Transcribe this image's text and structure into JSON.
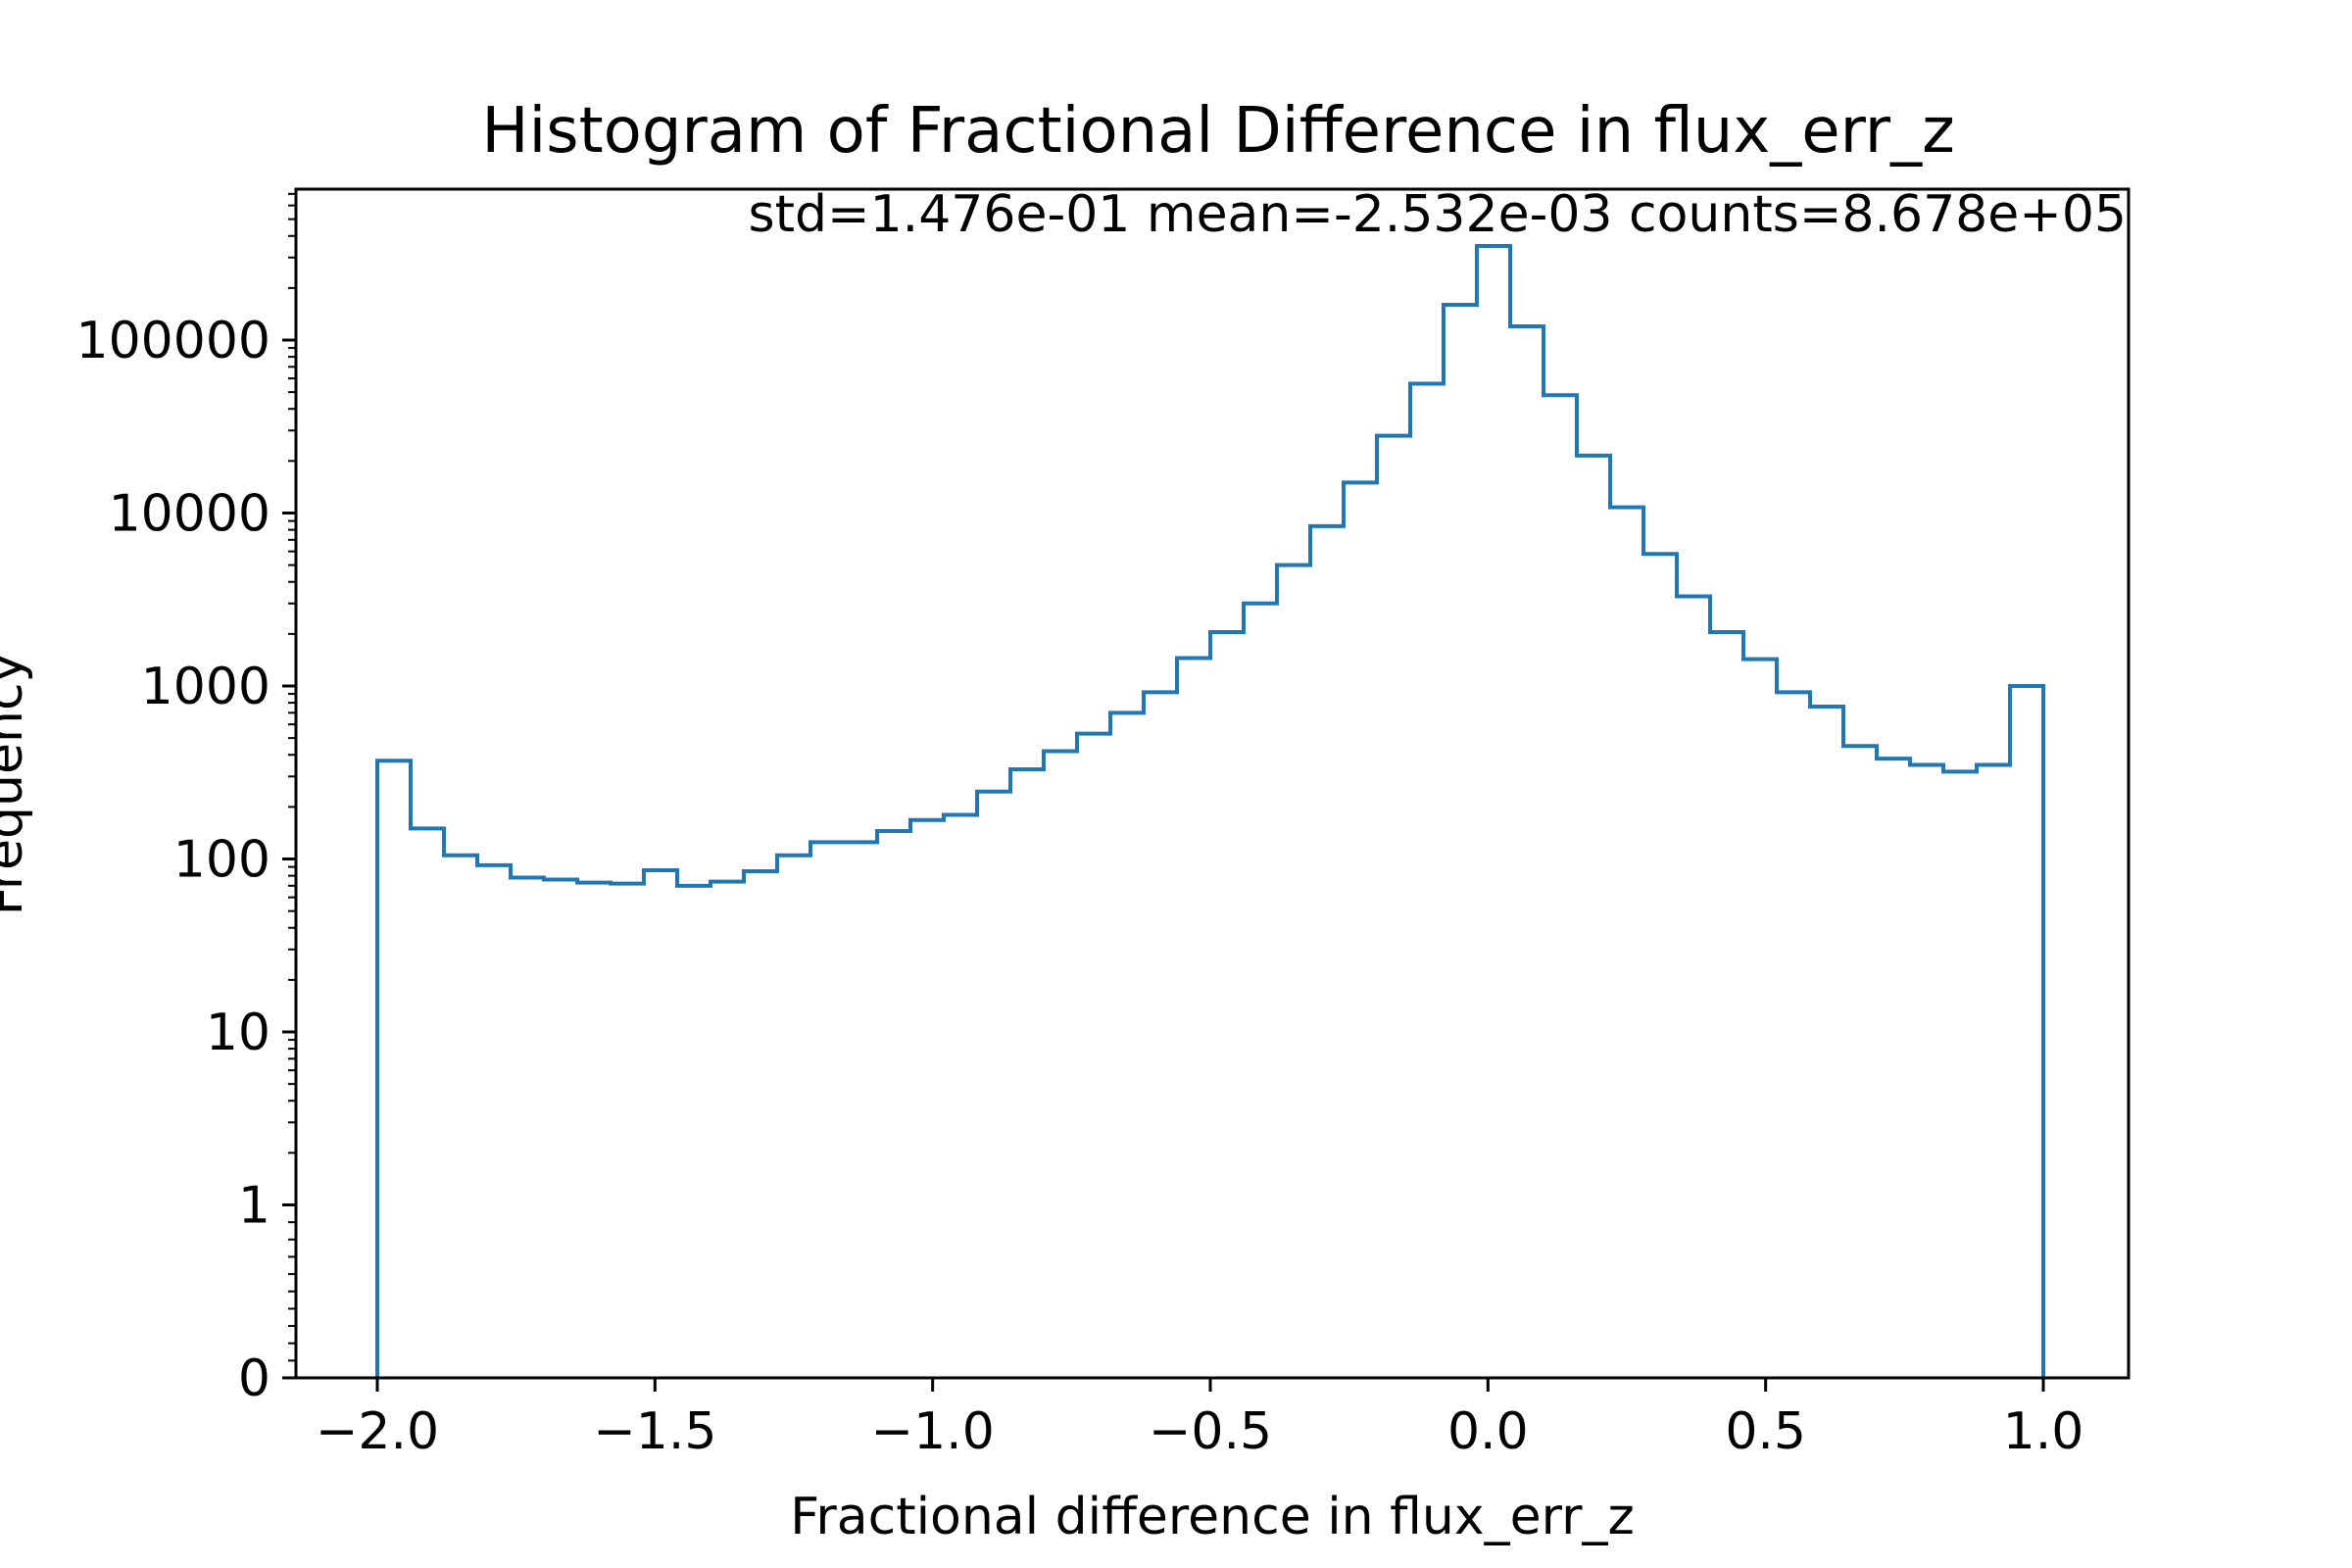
{
  "chart_data": {
    "type": "histogram",
    "title": "Histogram of Fractional Difference in flux_err_z",
    "annotation": "std=1.476e-01 mean=-2.532e-03 counts=8.678e+05",
    "xlabel": "Fractional difference in flux_err_z",
    "ylabel": "Frequency",
    "xlim": [
      -2.15,
      1.15
    ],
    "ylim": [
      0.3,
      700000
    ],
    "yscale": "symlog",
    "grid": false,
    "color": "#1f77b4",
    "xticks": [
      {
        "value": -2.0,
        "label": "−2.0"
      },
      {
        "value": -1.5,
        "label": "−1.5"
      },
      {
        "value": -1.0,
        "label": "−1.0"
      },
      {
        "value": -0.5,
        "label": "−0.5"
      },
      {
        "value": 0.0,
        "label": "0.0"
      },
      {
        "value": 0.5,
        "label": "0.5"
      },
      {
        "value": 1.0,
        "label": "1.0"
      }
    ],
    "yticks": [
      {
        "value": 0,
        "label": "0"
      },
      {
        "value": 1,
        "label": "1"
      },
      {
        "value": 10,
        "label": "10"
      },
      {
        "value": 100,
        "label": "100"
      },
      {
        "value": 1000,
        "label": "1000"
      },
      {
        "value": 10000,
        "label": "10000"
      },
      {
        "value": 100000,
        "label": "100000"
      }
    ],
    "bin_edges": [
      -2.0,
      -1.94,
      -1.88,
      -1.82,
      -1.76,
      -1.7,
      -1.64,
      -1.58,
      -1.52,
      -1.46,
      -1.4,
      -1.34,
      -1.28,
      -1.22,
      -1.16,
      -1.1,
      -1.04,
      -0.98,
      -0.92,
      -0.86,
      -0.8,
      -0.74,
      -0.68,
      -0.62,
      -0.56,
      -0.5,
      -0.44,
      -0.38,
      -0.32,
      -0.26,
      -0.2,
      -0.14,
      -0.08,
      -0.02,
      0.04,
      0.1,
      0.16,
      0.22,
      0.28,
      0.34,
      0.4,
      0.46,
      0.52,
      0.58,
      0.64,
      0.7,
      0.76,
      0.82,
      0.88,
      0.94,
      1.0
    ],
    "counts": [
      370,
      150,
      105,
      92,
      78,
      76,
      73,
      72,
      86,
      70,
      74,
      85,
      105,
      125,
      125,
      145,
      168,
      180,
      245,
      330,
      420,
      530,
      700,
      920,
      1450,
      2050,
      3000,
      5000,
      8400,
      15000,
      28000,
      56000,
      160000,
      350000,
      120000,
      48000,
      21500,
      10800,
      5800,
      3300,
      2050,
      1430,
      920,
      760,
      450,
      380,
      350,
      320,
      350,
      1000
    ]
  }
}
